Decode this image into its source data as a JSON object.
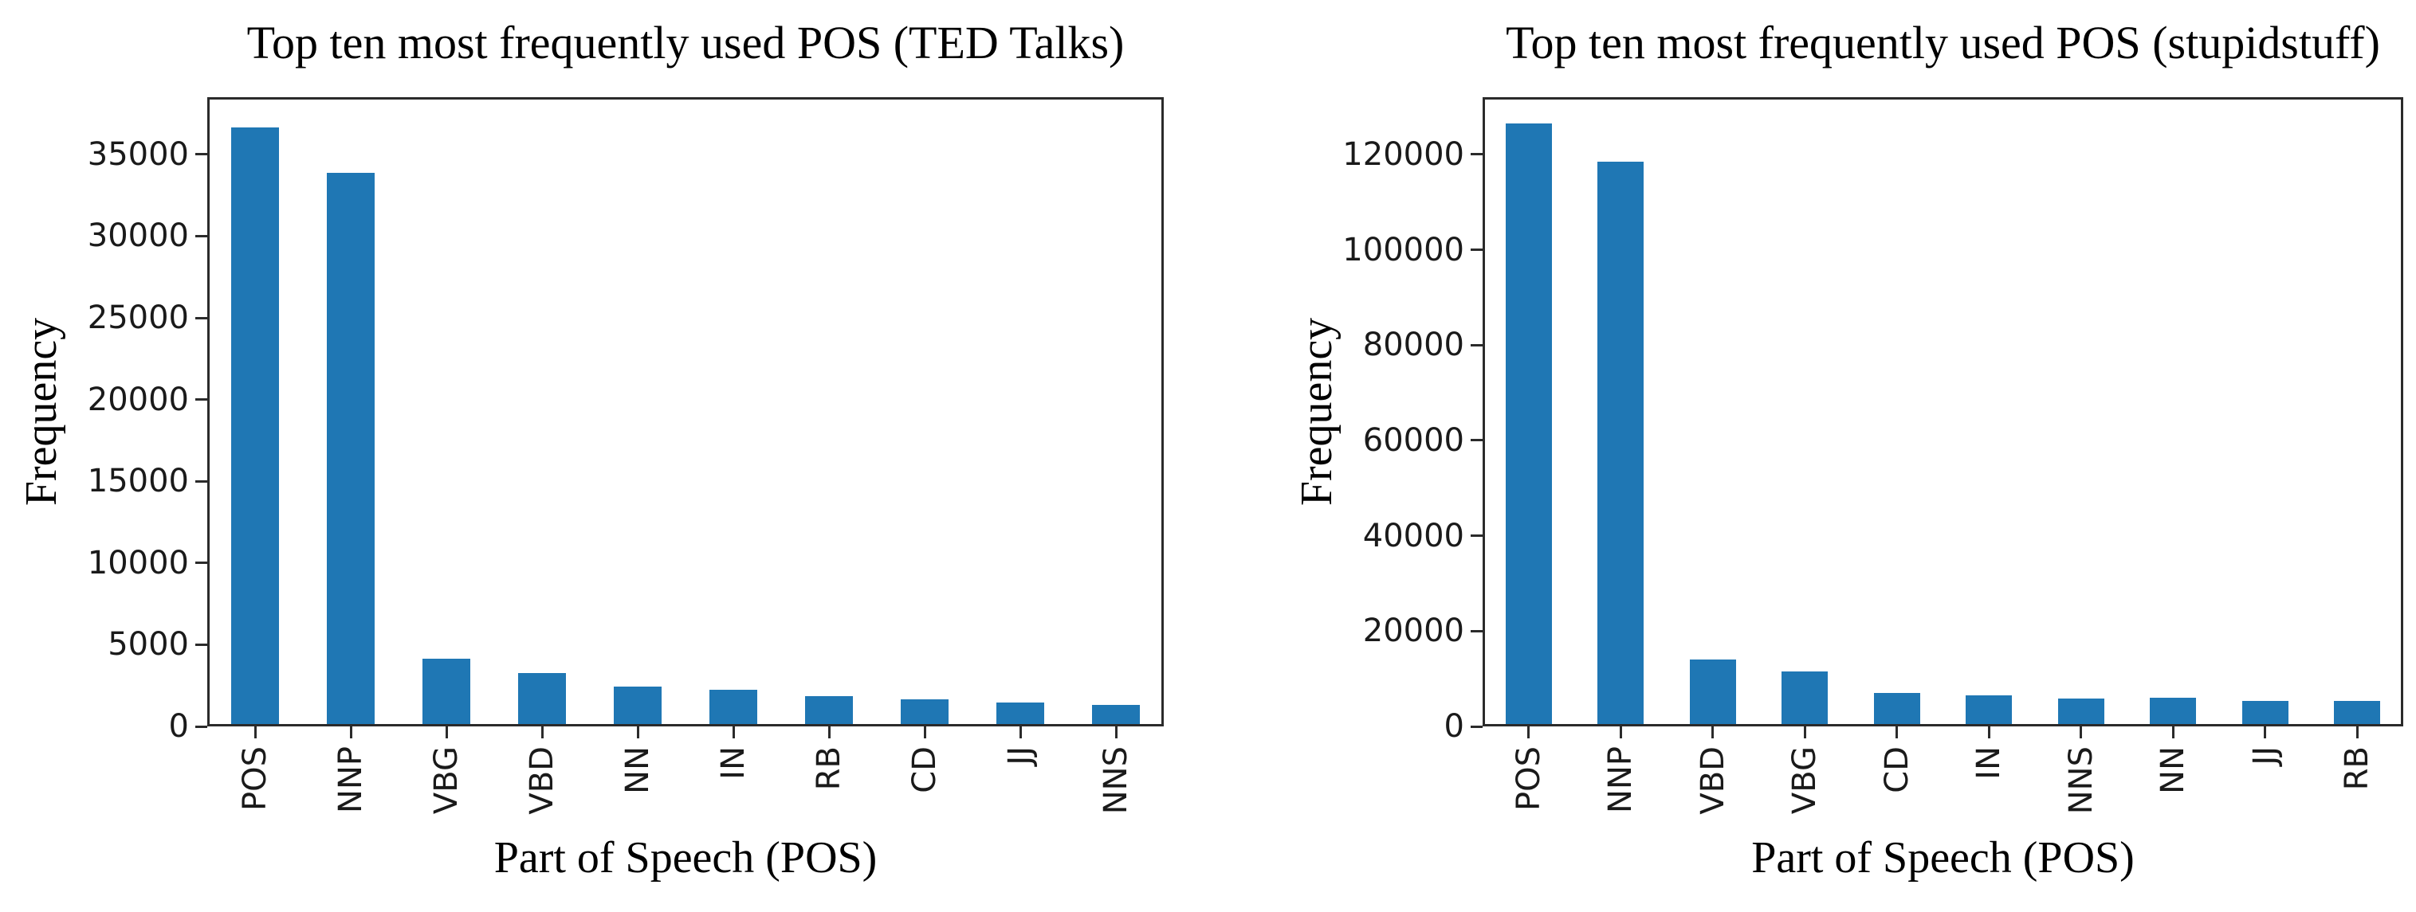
{
  "figure": {
    "background": "#ffffff"
  },
  "colors": {
    "bar": "#1f77b4",
    "spine": "#2b2b2b",
    "text": "#000000"
  },
  "chart_data": [
    {
      "type": "bar",
      "title": "Top ten most frequently used POS (TED Talks)",
      "xlabel": "Part of Speech (POS)",
      "ylabel": "Frequency",
      "categories": [
        "POS",
        "NNP",
        "VBG",
        "VBD",
        "NN",
        "IN",
        "RB",
        "CD",
        "JJ",
        "NNS"
      ],
      "values": [
        36500,
        33700,
        4000,
        3100,
        2300,
        2100,
        1700,
        1500,
        1300,
        1150
      ],
      "yticks": [
        0,
        5000,
        10000,
        15000,
        20000,
        25000,
        30000,
        35000
      ],
      "ylim": [
        0,
        38500
      ],
      "grid": "off",
      "legend": "none",
      "bar_color": "#1f77b4"
    },
    {
      "type": "bar",
      "title": "Top ten most frequently used POS (stupidstuff)",
      "xlabel": "Part of Speech (POS)",
      "ylabel": "Frequency",
      "categories": [
        "POS",
        "NNP",
        "VBD",
        "VBG",
        "CD",
        "IN",
        "NNS",
        "NN",
        "JJ",
        "RB"
      ],
      "values": [
        126000,
        118000,
        13500,
        11000,
        6500,
        6000,
        5300,
        5500,
        4800,
        4900
      ],
      "yticks": [
        0,
        20000,
        40000,
        60000,
        80000,
        100000,
        120000
      ],
      "ylim": [
        0,
        132000
      ],
      "grid": "off",
      "legend": "none",
      "bar_color": "#1f77b4"
    }
  ]
}
